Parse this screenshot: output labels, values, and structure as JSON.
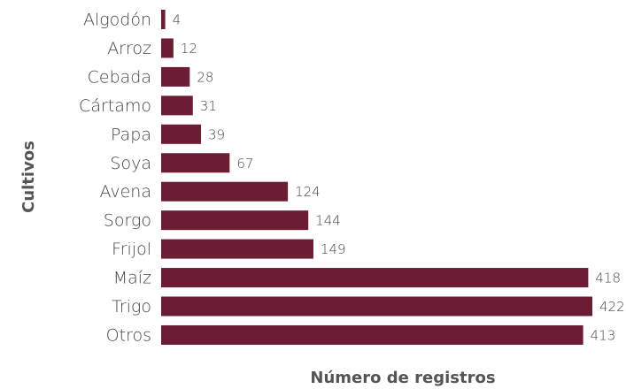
{
  "chart_data": {
    "type": "bar",
    "orientation": "horizontal",
    "categories": [
      "Algodón",
      "Arroz",
      "Cebada",
      "Cártamo",
      "Papa",
      "Soya",
      "Avena",
      "Sorgo",
      "Frijol",
      "Maíz",
      "Trigo",
      "Otros"
    ],
    "values": [
      4,
      12,
      28,
      31,
      39,
      67,
      124,
      144,
      149,
      418,
      422,
      413
    ],
    "color": "#6b1d33",
    "x_label": "Número de registros",
    "y_label": "Cultivos"
  }
}
